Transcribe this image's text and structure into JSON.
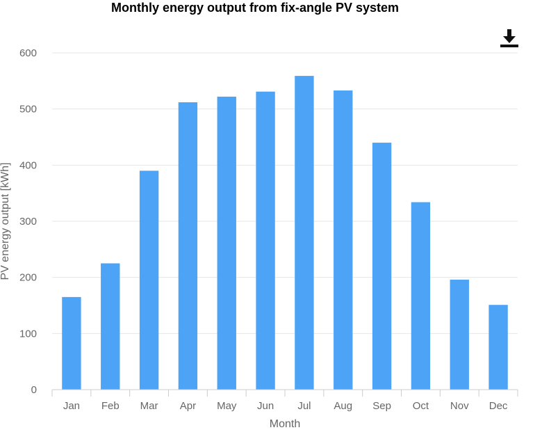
{
  "chart_data": {
    "type": "bar",
    "title": "Monthly energy output from fix-angle PV system",
    "xlabel": "Month",
    "ylabel": "PV energy output [kWh]",
    "categories": [
      "Jan",
      "Feb",
      "Mar",
      "Apr",
      "May",
      "Jun",
      "Jul",
      "Aug",
      "Sep",
      "Oct",
      "Nov",
      "Dec"
    ],
    "values": [
      165,
      225,
      390,
      512,
      522,
      531,
      559,
      533,
      440,
      334,
      196,
      151
    ],
    "ylim": [
      0,
      600
    ],
    "yticks": [
      0,
      100,
      200,
      300,
      400,
      500,
      600
    ],
    "grid": true,
    "legend": "none",
    "colors": {
      "bar": "#4DA3F5",
      "grid": "#E6E6E6",
      "axis": "#CCCCCC",
      "tick_label": "#666666",
      "axis_label": "#666666"
    }
  },
  "toolbar": {
    "download_icon": "download-icon"
  }
}
